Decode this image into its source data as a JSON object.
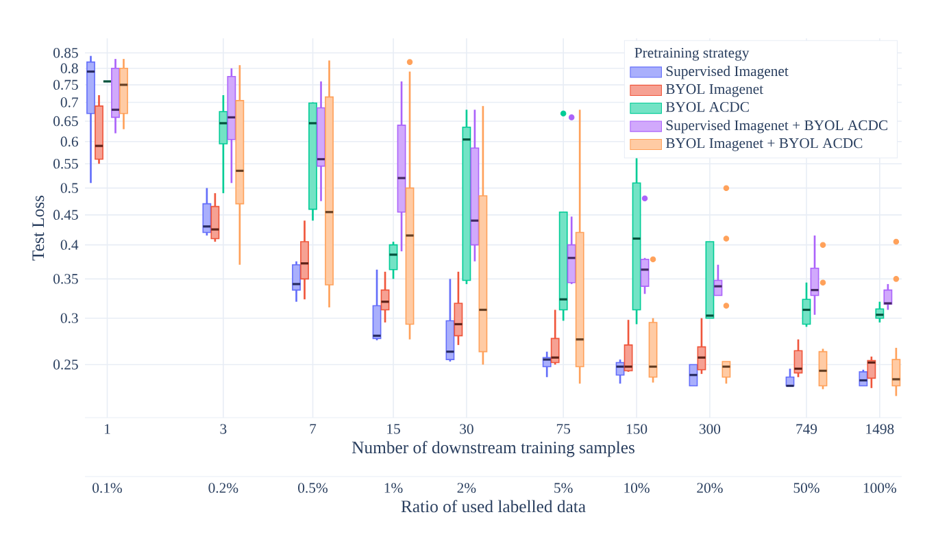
{
  "chart_data": {
    "type": "box",
    "xlabel": "Number of downstream training samples",
    "ylabel": "Test Loss",
    "x2label": "Ratio of used labelled data",
    "legend_title": "Pretraining strategy",
    "legend": "top right",
    "grid": true,
    "log": "xy",
    "x": [
      1,
      3,
      7,
      15,
      30,
      75,
      150,
      300,
      749,
      1498
    ],
    "xlim": [
      0.81,
      1845
    ],
    "ylim": [
      0.203,
      0.9
    ],
    "xticks": [
      1,
      3,
      7,
      15,
      30,
      75,
      150,
      300,
      749,
      1498
    ],
    "annotations": [
      "0.1%",
      "0.2%",
      "0.5%",
      "1%",
      "2%",
      "5%",
      "10%",
      "20%",
      "50%",
      "100%"
    ],
    "yticks": [
      0.25,
      0.3,
      0.35,
      0.4,
      0.45,
      0.5,
      0.55,
      0.6,
      0.65,
      0.7,
      0.75,
      0.8,
      0.85
    ],
    "series": [
      {
        "name": "Supervised Imagenet",
        "color": "#636efa",
        "boxes": [
          {
            "low": 0.51,
            "q1": 0.67,
            "median": 0.79,
            "q3": 0.82,
            "high": 0.84
          },
          {
            "low": 0.415,
            "q1": 0.42,
            "median": 0.43,
            "q3": 0.47,
            "high": 0.5
          },
          {
            "low": 0.32,
            "q1": 0.335,
            "median": 0.343,
            "q3": 0.37,
            "high": 0.375
          },
          {
            "low": 0.275,
            "q1": 0.277,
            "median": 0.28,
            "q3": 0.315,
            "high": 0.363
          },
          {
            "low": 0.253,
            "q1": 0.255,
            "median": 0.263,
            "q3": 0.297,
            "high": 0.35
          },
          {
            "low": 0.238,
            "q1": 0.248,
            "median": 0.255,
            "q3": 0.257,
            "high": 0.263
          },
          {
            "low": 0.232,
            "q1": 0.24,
            "median": 0.248,
            "q3": 0.252,
            "high": 0.255
          },
          {
            "low": 0.23,
            "q1": 0.23,
            "median": 0.24,
            "q3": 0.25,
            "high": 0.25
          },
          {
            "low": 0.23,
            "q1": 0.23,
            "median": 0.23,
            "q3": 0.238,
            "high": 0.246
          },
          {
            "low": 0.23,
            "q1": 0.23,
            "median": 0.235,
            "q3": 0.243,
            "high": 0.245
          }
        ]
      },
      {
        "name": "BYOL Imagenet",
        "color": "#ef553b",
        "boxes": [
          {
            "low": 0.55,
            "q1": 0.56,
            "median": 0.59,
            "q3": 0.69,
            "high": 0.72
          },
          {
            "low": 0.405,
            "q1": 0.41,
            "median": 0.425,
            "q3": 0.465,
            "high": 0.49
          },
          {
            "low": 0.323,
            "q1": 0.35,
            "median": 0.372,
            "q3": 0.405,
            "high": 0.44
          },
          {
            "low": 0.295,
            "q1": 0.31,
            "median": 0.32,
            "q3": 0.335,
            "high": 0.36
          },
          {
            "low": 0.27,
            "q1": 0.28,
            "median": 0.293,
            "q3": 0.318,
            "high": 0.36
          },
          {
            "low": 0.25,
            "q1": 0.252,
            "median": 0.257,
            "q3": 0.277,
            "high": 0.31
          },
          {
            "low": 0.243,
            "q1": 0.244,
            "median": 0.248,
            "q3": 0.27,
            "high": 0.298
          },
          {
            "low": 0.241,
            "q1": 0.245,
            "median": 0.257,
            "q3": 0.268,
            "high": 0.3
          },
          {
            "low": 0.238,
            "q1": 0.242,
            "median": 0.246,
            "q3": 0.264,
            "high": 0.276
          },
          {
            "low": 0.228,
            "q1": 0.237,
            "median": 0.252,
            "q3": 0.254,
            "high": 0.258
          }
        ]
      },
      {
        "name": "BYOL ACDC",
        "color": "#00cc96",
        "boxes": [
          {
            "low": 0.76,
            "q1": 0.76,
            "median": 0.76,
            "q3": 0.76,
            "high": 0.76
          },
          {
            "low": 0.49,
            "q1": 0.595,
            "median": 0.645,
            "q3": 0.675,
            "high": 0.72
          },
          {
            "low": 0.44,
            "q1": 0.46,
            "median": 0.645,
            "q3": 0.698,
            "high": 0.7
          },
          {
            "low": 0.35,
            "q1": 0.363,
            "median": 0.385,
            "q3": 0.4,
            "high": 0.405
          },
          {
            "low": 0.343,
            "q1": 0.348,
            "median": 0.605,
            "q3": 0.635,
            "high": 0.68
          },
          {
            "low": 0.297,
            "q1": 0.31,
            "median": 0.323,
            "q3": 0.455,
            "high": 0.455,
            "outliers": [
              0.67
            ]
          },
          {
            "low": 0.293,
            "q1": 0.31,
            "median": 0.41,
            "q3": 0.51,
            "high": 0.68
          },
          {
            "low": 0.3,
            "q1": 0.3,
            "median": 0.303,
            "q3": 0.405,
            "high": 0.405
          },
          {
            "low": 0.29,
            "q1": 0.293,
            "median": 0.31,
            "q3": 0.323,
            "high": 0.345
          },
          {
            "low": 0.295,
            "q1": 0.3,
            "median": 0.304,
            "q3": 0.311,
            "high": 0.32
          }
        ]
      },
      {
        "name": "Supervised Imagenet + BYOL ACDC",
        "color": "#ab63fa",
        "boxes": [
          {
            "low": 0.62,
            "q1": 0.66,
            "median": 0.68,
            "q3": 0.8,
            "high": 0.83
          },
          {
            "low": 0.51,
            "q1": 0.605,
            "median": 0.66,
            "q3": 0.775,
            "high": 0.8
          },
          {
            "low": 0.475,
            "q1": 0.545,
            "median": 0.56,
            "q3": 0.685,
            "high": 0.76
          },
          {
            "low": 0.39,
            "q1": 0.455,
            "median": 0.52,
            "q3": 0.64,
            "high": 0.76
          },
          {
            "low": 0.375,
            "q1": 0.4,
            "median": 0.44,
            "q3": 0.585,
            "high": 0.68
          },
          {
            "low": 0.343,
            "q1": 0.345,
            "median": 0.38,
            "q3": 0.4,
            "high": 0.447,
            "outliers": [
              0.66
            ]
          },
          {
            "low": 0.33,
            "q1": 0.34,
            "median": 0.363,
            "q3": 0.378,
            "high": 0.38,
            "outliers": [
              0.48
            ]
          },
          {
            "low": 0.328,
            "q1": 0.328,
            "median": 0.34,
            "q3": 0.348,
            "high": 0.37
          },
          {
            "low": 0.304,
            "q1": 0.328,
            "median": 0.335,
            "q3": 0.365,
            "high": 0.415
          },
          {
            "low": 0.31,
            "q1": 0.317,
            "median": 0.318,
            "q3": 0.335,
            "high": 0.343
          }
        ]
      },
      {
        "name": "BYOL Imagenet + BYOL ACDC",
        "color": "#ffa15a",
        "boxes": [
          {
            "low": 0.63,
            "q1": 0.67,
            "median": 0.75,
            "q3": 0.8,
            "high": 0.83
          },
          {
            "low": 0.37,
            "q1": 0.47,
            "median": 0.535,
            "q3": 0.705,
            "high": 0.81
          },
          {
            "low": 0.313,
            "q1": 0.342,
            "median": 0.455,
            "q3": 0.715,
            "high": 0.825
          },
          {
            "low": 0.276,
            "q1": 0.293,
            "median": 0.415,
            "q3": 0.5,
            "high": 0.79,
            "outliers": [
              0.82
            ]
          },
          {
            "low": 0.25,
            "q1": 0.263,
            "median": 0.31,
            "q3": 0.485,
            "high": 0.69
          },
          {
            "low": 0.232,
            "q1": 0.248,
            "median": 0.276,
            "q3": 0.42,
            "high": 0.68
          },
          {
            "low": 0.233,
            "q1": 0.238,
            "median": 0.248,
            "q3": 0.295,
            "high": 0.3,
            "outliers": [
              0.378
            ]
          },
          {
            "low": 0.232,
            "q1": 0.238,
            "median": 0.248,
            "q3": 0.253,
            "high": 0.253,
            "outliers": [
              0.5,
              0.41,
              0.315
            ]
          },
          {
            "low": 0.227,
            "q1": 0.23,
            "median": 0.244,
            "q3": 0.263,
            "high": 0.266,
            "outliers": [
              0.4,
              0.345
            ]
          },
          {
            "low": 0.221,
            "q1": 0.23,
            "median": 0.236,
            "q3": 0.255,
            "high": 0.267,
            "outliers": [
              0.405,
              0.35
            ]
          }
        ]
      }
    ]
  }
}
